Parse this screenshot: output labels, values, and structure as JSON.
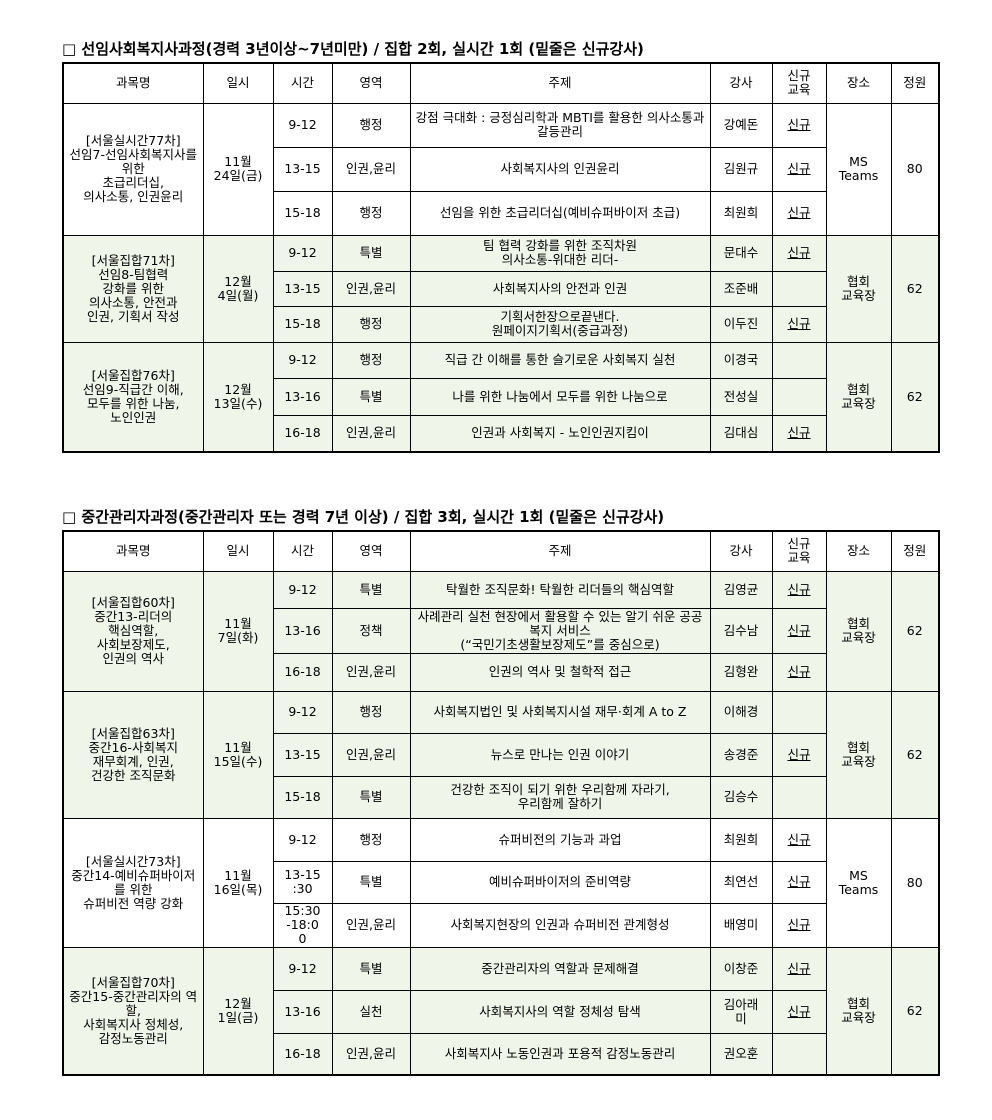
{
  "headers": [
    "과목명",
    "일시",
    "시간",
    "영역",
    "주제",
    "강사",
    "신규\n교육",
    "장소",
    "정원"
  ],
  "sections": [
    {
      "title": "□ 선임사회복지사과정(경력 3년이상~7년미만) / 집합 2회, 실시간 1회 (밑줄은 신규강사)",
      "groups": [
        {
          "course": "[서울실시간77차]\n선임7-선임사회복지사를 위한\n초급리더십,\n의사소통, 인권윤리",
          "date": "11월\n24일(금)",
          "place": "MS\nTeams",
          "capacity": "80",
          "shaded": false,
          "sessions": [
            {
              "time": "9-12",
              "area": "행정",
              "topic": "강점 극대화 :  긍정심리학과 MBTI를 활용한 의사소통과 갈등관리",
              "instructor": "강예돈",
              "new": "신규"
            },
            {
              "time": "13-15",
              "area": "인권,윤리",
              "topic": "사회복지사의 인권윤리",
              "instructor": "김원규",
              "new": "신규"
            },
            {
              "time": "15-18",
              "area": "행정",
              "topic": "선임을 위한 초급리더십(예비슈퍼바이저 초급)",
              "instructor": "최원희",
              "new": "신규"
            }
          ]
        },
        {
          "course": "[서울집합71차]\n선임8-팀협력\n강화를 위한\n의사소통, 안전과\n인권, 기획서 작성",
          "date": "12월\n4일(월)",
          "place": "협회\n교육장",
          "capacity": "62",
          "shaded": true,
          "sessions": [
            {
              "time": "9-12",
              "area": "특별",
              "topic": "팀 협력 강화를 위한 조직차원\n의사소통-위대한 리더-",
              "instructor": "문대수",
              "new": "신규"
            },
            {
              "time": "13-15",
              "area": "인권,윤리",
              "topic": "사회복지사의 안전과 인권",
              "instructor": "조준배",
              "new": ""
            },
            {
              "time": "15-18",
              "area": "행정",
              "topic": "기획서한장으로끝낸다.\n원페이지기획서(중급과정)",
              "instructor": "이두진",
              "new": "신규"
            }
          ]
        },
        {
          "course": "[서울집합76차]\n선임9-직급간 이해,\n모두를 위한 나눔,\n노인인권",
          "date": "12월\n13일(수)",
          "place": "협회\n교육장",
          "capacity": "62",
          "shaded": true,
          "sessions": [
            {
              "time": "9-12",
              "area": "행정",
              "topic": "직급 간 이해를 통한 슬기로운 사회복지 실천",
              "instructor": "이경국",
              "new": ""
            },
            {
              "time": "13-16",
              "area": "특별",
              "topic": "나를 위한 나눔에서 모두를 위한 나눔으로",
              "instructor": "전성실",
              "new": ""
            },
            {
              "time": "16-18",
              "area": "인권,윤리",
              "topic": "인권과 사회복지 - 노인인권지킴이",
              "instructor": "김대심",
              "new": "신규"
            }
          ]
        }
      ]
    },
    {
      "title": "□ 중간관리자과정(중간관리자 또는 경력 7년 이상) / 집합 3회, 실시간 1회 (밑줄은 신규강사)",
      "groups": [
        {
          "course": "[서울집합60차]\n중간13-리더의\n핵심역할,\n사회보장제도,\n인권의 역사",
          "date": "11월\n7일(화)",
          "place": "협회\n교육장",
          "capacity": "62",
          "shaded": true,
          "sessions": [
            {
              "time": "9-12",
              "area": "특별",
              "topic": "탁월한 조직문화! 탁월한  리더들의 핵심역할",
              "instructor": "김영균",
              "new": "신규"
            },
            {
              "time": "13-16",
              "area": "정책",
              "topic": "사례관리 실천 현장에서 활용할 수 있는 알기 쉬운 공공복지 서비스\n(“국민기초생활보장제도”를 중심으로)",
              "instructor": "김수남",
              "new": "신규"
            },
            {
              "time": "16-18",
              "area": "인권,윤리",
              "topic": "인권의 역사 및 철학적 접근",
              "instructor": "김형완",
              "new": "신규"
            }
          ]
        },
        {
          "course": "[서울집합63차]\n중간16-사회복지\n재무회계, 인권,\n건강한 조직문화",
          "date": "11월\n15일(수)",
          "place": "협회\n교육장",
          "capacity": "62",
          "shaded": true,
          "sessions": [
            {
              "time": "9-12",
              "area": "행정",
              "topic": "사회복지법인 및  사회복지시설 재무·회계 A to Z",
              "instructor": "이해경",
              "new": ""
            },
            {
              "time": "13-15",
              "area": "인권,윤리",
              "topic": "뉴스로 만나는 인권 이야기",
              "instructor": "송경준",
              "new": "신규"
            },
            {
              "time": "15-18",
              "area": "특별",
              "topic": "건강한 조직이 되기 위한 우리함께  자라기,\n우리함께 잘하기",
              "instructor": "김승수",
              "new": ""
            }
          ]
        },
        {
          "course": "[서울실시간73차]\n중간14-예비슈퍼바이저를 위한\n슈퍼비전 역량 강화",
          "date": "11월\n16일(목)",
          "place": "MS\nTeams",
          "capacity": "80",
          "shaded": false,
          "sessions": [
            {
              "time": "9-12",
              "area": "행정",
              "topic": "슈퍼비전의 기능과 과업",
              "instructor": "최원희",
              "new": "신규"
            },
            {
              "time": "13-15\n:30",
              "area": "특별",
              "topic": "예비슈퍼바이저의 준비역량",
              "instructor": "최연선",
              "new": "신규"
            },
            {
              "time": "15:30\n-18:0\n0",
              "area": "인권,윤리",
              "topic": "사회복지현장의 인권과 슈퍼비전 관계형성",
              "instructor": "배영미",
              "new": "신규"
            }
          ]
        },
        {
          "course": "[서울집합70차]\n중간15-중간관리자의 역할,\n사회복지사 정체성,\n감정노동관리",
          "date": "12월\n1일(금)",
          "place": "협회\n교육장",
          "capacity": "62",
          "shaded": true,
          "sessions": [
            {
              "time": "9-12",
              "area": "특별",
              "topic": "중간관리자의 역할과 문제해결",
              "instructor": "이창준",
              "new": "신규"
            },
            {
              "time": "13-16",
              "area": "실천",
              "topic": "사회복지사의 역할 정체성 탐색",
              "instructor": "김아래\n미",
              "new": "신규"
            },
            {
              "time": "16-18",
              "area": "인권,윤리",
              "topic": "사회복지사 노동인권과 포용적  감정노동관리",
              "instructor": "권오훈",
              "new": ""
            }
          ]
        }
      ]
    }
  ]
}
